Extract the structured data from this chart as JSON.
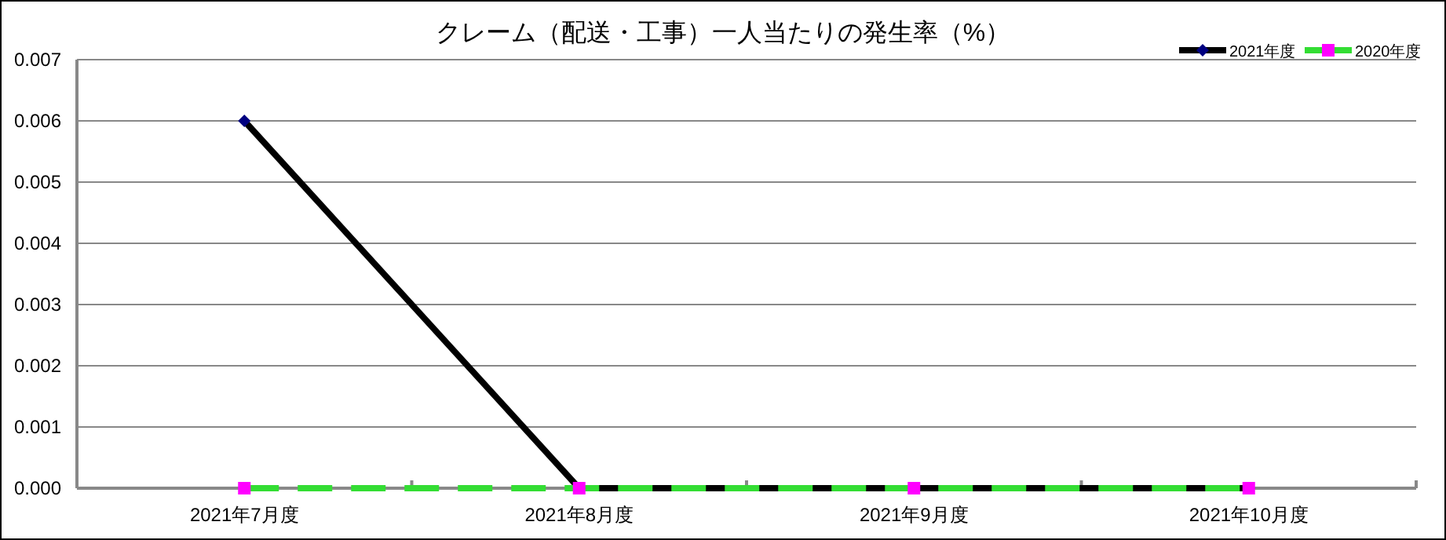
{
  "chart_data": {
    "type": "line",
    "title": "クレーム（配送・工事）一人当たりの発生率（%）",
    "categories": [
      "2021年7月度",
      "2021年8月度",
      "2021年9月度",
      "2021年10月度"
    ],
    "series": [
      {
        "name": "2021年度",
        "color": "#000000",
        "values": [
          0.006,
          0,
          0,
          0
        ],
        "marker": "diamond",
        "line_style": "solid"
      },
      {
        "name": "2020年度",
        "color": "#33dd33",
        "values": [
          0,
          0,
          0,
          0
        ],
        "marker": "square",
        "line_style": "dashed"
      }
    ],
    "ylim": [
      0,
      0.007
    ],
    "yticks": [
      {
        "value": 0,
        "label": "0.000"
      },
      {
        "value": 0.001,
        "label": "0.001"
      },
      {
        "value": 0.002,
        "label": "0.002"
      },
      {
        "value": 0.003,
        "label": "0.003"
      },
      {
        "value": 0.004,
        "label": "0.004"
      },
      {
        "value": 0.005,
        "label": "0.005"
      },
      {
        "value": 0.006,
        "label": "0.006"
      },
      {
        "value": 0.007,
        "label": "0.007"
      }
    ],
    "grid": "y",
    "legend": "top right"
  }
}
